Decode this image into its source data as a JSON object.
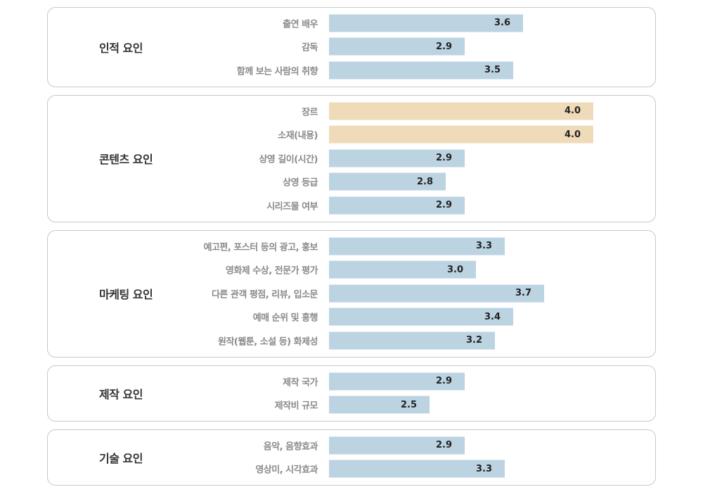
{
  "chart_data": {
    "type": "bar",
    "orientation": "horizontal",
    "colors": {
      "default": "#bcd3e2",
      "highlight": "#efdbb9"
    },
    "groups": [
      {
        "name": "인적 요인",
        "items": [
          {
            "label": "출연 배우",
            "value": 3.6,
            "highlight": false
          },
          {
            "label": "감독",
            "value": 2.9,
            "highlight": false
          },
          {
            "label": "함께 보는 사람의 취향",
            "value": 3.5,
            "highlight": false
          }
        ]
      },
      {
        "name": "콘텐츠 요인",
        "items": [
          {
            "label": "장르",
            "value": 4.0,
            "highlight": true
          },
          {
            "label": "소재(내용)",
            "value": 4.0,
            "highlight": true
          },
          {
            "label": "상영 길이(시간)",
            "value": 2.9,
            "highlight": false
          },
          {
            "label": "상영 등급",
            "value": 2.8,
            "highlight": false
          },
          {
            "label": "시리즈물 여부",
            "value": 2.9,
            "highlight": false
          }
        ]
      },
      {
        "name": "마케팅 요인",
        "items": [
          {
            "label": "예고편, 포스터 등의 광고, 홍보",
            "value": 3.3,
            "highlight": false
          },
          {
            "label": "영화제 수상, 전문가 평가",
            "value": 3.0,
            "highlight": false
          },
          {
            "label": "다른 관객 평점, 리뷰, 입소문",
            "value": 3.7,
            "highlight": false
          },
          {
            "label": "예매 순위 및 흥행",
            "value": 3.4,
            "highlight": false
          },
          {
            "label": "원작(웹툰, 소설 등) 화제성",
            "value": 3.2,
            "highlight": false
          }
        ]
      },
      {
        "name": "제작 요인",
        "items": [
          {
            "label": "제작 국가",
            "value": 2.9,
            "highlight": false
          },
          {
            "label": "제작비 규모",
            "value": 2.5,
            "highlight": false
          }
        ]
      },
      {
        "name": "기술 요인",
        "items": [
          {
            "label": "음악, 음향효과",
            "value": 2.9,
            "highlight": false
          },
          {
            "label": "영상미, 시각효과",
            "value": 3.3,
            "highlight": false
          }
        ]
      }
    ]
  }
}
